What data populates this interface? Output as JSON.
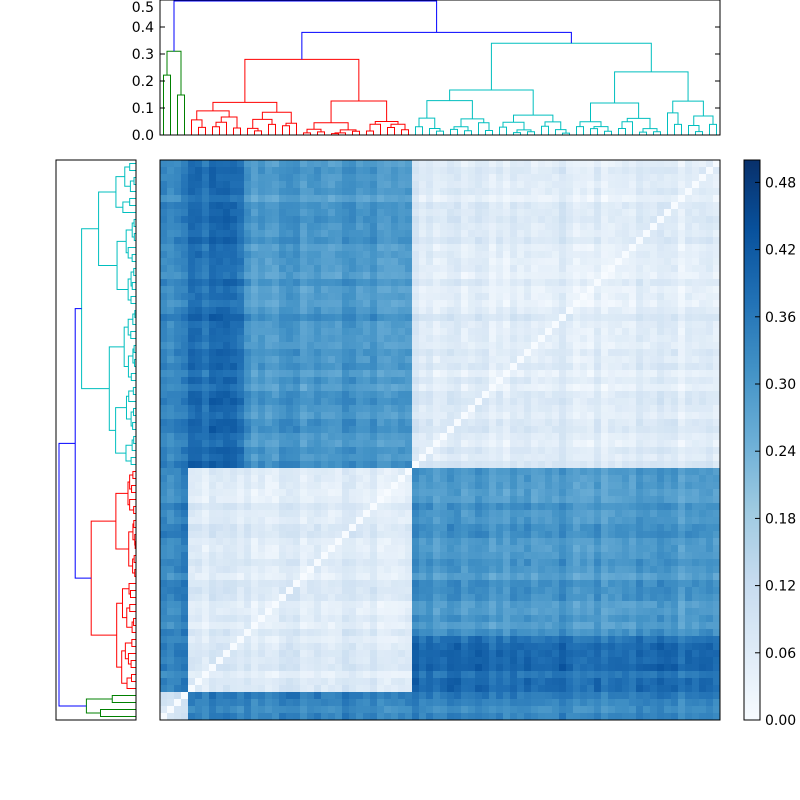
{
  "chart_data": {
    "type": "heatmap",
    "title": "",
    "xlabel": "",
    "ylabel": "",
    "grid_size": 80,
    "colormap": "Blues",
    "colorbar": {
      "range": [
        0.0,
        0.5
      ],
      "ticks": [
        "0.00",
        "0.06",
        "0.12",
        "0.18",
        "0.24",
        "0.30",
        "0.36",
        "0.42",
        "0.48"
      ]
    },
    "top_dendrogram": {
      "yaxis": {
        "range": [
          0,
          0.5
        ],
        "ticks": [
          "0.0",
          "0.1",
          "0.2",
          "0.3",
          "0.4",
          "0.5"
        ]
      },
      "root_height": 0.5
    },
    "clusters": [
      {
        "name": "cluster-green",
        "color": "#008000",
        "size": 4,
        "merge_height": 0.31
      },
      {
        "name": "cluster-red",
        "color": "#ff0000",
        "size": 32,
        "merge_height": 0.28
      },
      {
        "name": "cluster-cyan",
        "color": "#00bfbf",
        "size": 44,
        "merge_height": 0.34
      }
    ],
    "block_means": {
      "within": [
        0.08,
        0.06,
        0.06
      ],
      "green-red": 0.27,
      "green-cyan": 0.3,
      "red-cyan": 0.3,
      "heavy_band_values": [
        0.33,
        0.38,
        0.43
      ]
    },
    "link_color": "#0000ff"
  }
}
